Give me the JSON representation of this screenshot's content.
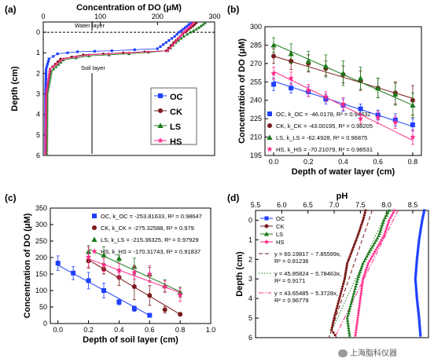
{
  "panel_labels": [
    "(a)",
    "(b)",
    "(c)",
    "(d)"
  ],
  "watermark": {
    "icon": "wechat-icon",
    "text": "上海脂科仪器"
  },
  "chart_data": [
    {
      "panel": "(a)",
      "type": "line",
      "xlabel": "Concentration of DO (μM)",
      "ylabel": "Depth (cm)",
      "xlim": [
        0,
        300
      ],
      "ylim": [
        -0.5,
        6
      ],
      "x_ticks": [
        "0",
        "100",
        "200",
        "300"
      ],
      "y_ticks": [
        "0",
        "1",
        "2",
        "3",
        "4",
        "5",
        "6"
      ],
      "y_inverted": true,
      "x_axis_position": "top",
      "annotations": [
        "Water layer",
        "Soil layer"
      ],
      "legend_position": "right-middle",
      "series": [
        {
          "name": "OC",
          "color": "#1f3fff",
          "marker": "square",
          "points": [
            [
              258,
              -0.45
            ],
            [
              252,
              -0.3
            ],
            [
              245,
              -0.15
            ],
            [
              238,
              0
            ],
            [
              230,
              0.2
            ],
            [
              215,
              0.5
            ],
            [
              200,
              0.8
            ],
            [
              120,
              0.9
            ],
            [
              60,
              0.95
            ],
            [
              25,
              1.05
            ],
            [
              10,
              1.3
            ],
            [
              5,
              1.8
            ],
            [
              4,
              3
            ],
            [
              4,
              6
            ]
          ]
        },
        {
          "name": "CK",
          "color": "#7a1a1a",
          "marker": "circle",
          "points": [
            [
              268,
              -0.45
            ],
            [
              262,
              -0.3
            ],
            [
              255,
              -0.15
            ],
            [
              248,
              0
            ],
            [
              240,
              0.2
            ],
            [
              228,
              0.5
            ],
            [
              215,
              0.9
            ],
            [
              140,
              1.0
            ],
            [
              70,
              1.1
            ],
            [
              30,
              1.3
            ],
            [
              12,
              1.8
            ],
            [
              6,
              3
            ],
            [
              5,
              6
            ]
          ]
        },
        {
          "name": "LS",
          "color": "#1a7a1a",
          "marker": "triangle",
          "points": [
            [
              283,
              -0.45
            ],
            [
              276,
              -0.3
            ],
            [
              268,
              -0.15
            ],
            [
              258,
              0
            ],
            [
              246,
              0.2
            ],
            [
              232,
              0.5
            ],
            [
              218,
              0.9
            ],
            [
              150,
              1.05
            ],
            [
              80,
              1.15
            ],
            [
              35,
              1.35
            ],
            [
              14,
              1.9
            ],
            [
              7,
              3
            ],
            [
              6,
              6
            ]
          ]
        },
        {
          "name": "HS",
          "color": "#ff2a8a",
          "marker": "star",
          "points": [
            [
              262,
              -0.45
            ],
            [
              258,
              -0.3
            ],
            [
              252,
              -0.15
            ],
            [
              246,
              0
            ],
            [
              240,
              0.2
            ],
            [
              230,
              0.5
            ],
            [
              218,
              0.9
            ],
            [
              150,
              1.0
            ],
            [
              80,
              1.1
            ],
            [
              35,
              1.3
            ],
            [
              12,
              1.8
            ],
            [
              5,
              3
            ],
            [
              4,
              6
            ]
          ]
        }
      ]
    },
    {
      "panel": "(b)",
      "type": "scatter",
      "xlabel": "Depth of water layer (cm)",
      "ylabel": "Concentration of DO (μM)",
      "xlim": [
        -0.05,
        0.85
      ],
      "ylim": [
        195,
        300
      ],
      "x_ticks": [
        "0.0",
        "0.2",
        "0.4",
        "0.6",
        "0.8"
      ],
      "y_ticks": [
        "195",
        "210",
        "225",
        "240",
        "255",
        "270",
        "285",
        "300"
      ],
      "legend_position": "bottom",
      "series": [
        {
          "name": "OC",
          "legend": "OC, k_OC = -46.0178, R² = 0.94832",
          "color": "#1f3fff",
          "marker": "square",
          "x": [
            0,
            0.1,
            0.2,
            0.3,
            0.4,
            0.5,
            0.6,
            0.7,
            0.8
          ],
          "y": [
            253,
            250,
            247,
            241,
            236,
            233,
            228,
            224,
            220
          ],
          "err": [
            5,
            4,
            4,
            4,
            5,
            4,
            4,
            5,
            5
          ],
          "fit": [
            0,
            255.5,
            0.8,
            218.7
          ]
        },
        {
          "name": "CK",
          "legend": "CK, k_CK = -43.00195, R² = 0.98205",
          "color": "#7a1a1a",
          "marker": "circle",
          "x": [
            0,
            0.1,
            0.2,
            0.3,
            0.4,
            0.5,
            0.6,
            0.7,
            0.8
          ],
          "y": [
            276,
            272,
            270,
            266,
            261,
            256,
            250,
            246,
            240
          ],
          "err": [
            6,
            7,
            7,
            6,
            7,
            8,
            8,
            9,
            12
          ],
          "fit": [
            0,
            276,
            0.8,
            241.6
          ]
        },
        {
          "name": "LS",
          "legend": "LS, k_LS = -62.4928, R² = 0.96875",
          "color": "#1a7a1a",
          "marker": "triangle",
          "x": [
            0,
            0.1,
            0.2,
            0.3,
            0.4,
            0.5,
            0.6,
            0.7,
            0.8
          ],
          "y": [
            285,
            278,
            272,
            268,
            262,
            258,
            250,
            245,
            236
          ],
          "err": [
            6,
            8,
            8,
            9,
            10,
            9,
            8,
            9,
            10
          ],
          "fit": [
            0,
            286,
            0.8,
            236
          ]
        },
        {
          "name": "HS",
          "legend": "HS, k_HS = -70.21079, R² = 0.98531",
          "color": "#ff2a8a",
          "marker": "star",
          "x": [
            0,
            0.1,
            0.2,
            0.3,
            0.4,
            0.5,
            0.6,
            0.7,
            0.8
          ],
          "y": [
            262,
            258,
            248,
            243,
            237,
            225,
            226,
            222,
            210
          ],
          "err": [
            5,
            5,
            5,
            4,
            5,
            4,
            5,
            5,
            6
          ],
          "fit": [
            0,
            263.5,
            0.8,
            207.3
          ]
        }
      ]
    },
    {
      "panel": "(c)",
      "type": "scatter",
      "xlabel": "Depth of soil layer (cm)",
      "ylabel": "Concentration of DO (μM)",
      "xlim": [
        -0.05,
        1.0
      ],
      "ylim": [
        0,
        350
      ],
      "x_ticks": [
        "0.0",
        "0.2",
        "0.4",
        "0.6",
        "0.8",
        "1.0"
      ],
      "y_ticks": [
        "0",
        "50",
        "100",
        "150",
        "200",
        "250",
        "300",
        "350"
      ],
      "legend_position": "top-right",
      "series": [
        {
          "name": "OC",
          "legend": "OC, k_OC = -253.81633, R² = 0.98647",
          "color": "#1f3fff",
          "marker": "square",
          "x": [
            0,
            0.1,
            0.2,
            0.3,
            0.4,
            0.5,
            0.6
          ],
          "y": [
            183,
            153,
            130,
            100,
            65,
            45,
            25
          ],
          "err": [
            22,
            20,
            25,
            22,
            8,
            8,
            5
          ],
          "fit": [
            0,
            177,
            0.6,
            24.7
          ]
        },
        {
          "name": "CK",
          "legend": "CK, k_CK = -275.32588, R² = 0.979",
          "color": "#7a1a1a",
          "marker": "circle",
          "x": [
            0.2,
            0.3,
            0.4,
            0.5,
            0.6,
            0.7,
            0.8
          ],
          "y": [
            190,
            165,
            140,
            112,
            85,
            42,
            28
          ],
          "err": [
            22,
            15,
            25,
            40,
            30,
            10,
            5
          ],
          "fit": [
            0.2,
            193,
            0.8,
            27.8
          ]
        },
        {
          "name": "LS",
          "legend": "LS, k_LS = -215.36325, R² = 0.97929",
          "color": "#1a7a1a",
          "marker": "triangle",
          "x": [
            0.2,
            0.3,
            0.4,
            0.5,
            0.6,
            0.7,
            0.8
          ],
          "y": [
            218,
            208,
            198,
            173,
            150,
            115,
            95
          ],
          "err": [
            18,
            25,
            10,
            25,
            20,
            18,
            15
          ],
          "fit": [
            0.2,
            226,
            0.8,
            96.8
          ]
        },
        {
          "name": "HS",
          "legend": "HS, k_HS = -170.31743, R² = 0.91837",
          "color": "#ff2a8a",
          "marker": "star",
          "x": [
            0.2,
            0.3,
            0.4,
            0.5,
            0.6,
            0.7,
            0.8
          ],
          "y": [
            202,
            178,
            160,
            155,
            150,
            112,
            87
          ],
          "err": [
            30,
            20,
            22,
            20,
            25,
            18,
            20
          ],
          "fit": [
            0.2,
            196,
            0.8,
            93.8
          ]
        }
      ]
    },
    {
      "panel": "(d)",
      "type": "line",
      "xlabel": "pH",
      "ylabel": "Depth (cm)",
      "xlim": [
        5.5,
        8.8
      ],
      "ylim": [
        -0.5,
        6
      ],
      "x_ticks": [
        "5.5",
        "6.0",
        "6.5",
        "7.0",
        "7.5",
        "8.0",
        "8.5"
      ],
      "y_ticks": [
        "0",
        "1",
        "2",
        "3",
        "4",
        "5",
        "6"
      ],
      "y_inverted": true,
      "x_axis_position": "top",
      "legend_position": "top-left",
      "series": [
        {
          "name": "OC",
          "color": "#1f3fff",
          "marker": "square",
          "points": [
            [
              8.72,
              -0.5
            ],
            [
              8.68,
              0
            ],
            [
              8.62,
              1
            ],
            [
              8.58,
              2
            ],
            [
              8.55,
              3
            ],
            [
              8.58,
              4
            ],
            [
              8.62,
              5
            ],
            [
              8.65,
              6
            ]
          ]
        },
        {
          "name": "CK",
          "color": "#7a1a1a",
          "marker": "circle",
          "points": [
            [
              7.6,
              -0.5
            ],
            [
              7.55,
              0
            ],
            [
              7.45,
              0.8
            ],
            [
              7.35,
              1.5
            ],
            [
              7.25,
              2.2
            ],
            [
              7.2,
              3
            ],
            [
              7.1,
              4
            ],
            [
              7.0,
              5
            ],
            [
              6.95,
              5.6
            ],
            [
              7.05,
              6
            ]
          ]
        },
        {
          "name": "LS",
          "color": "#1a7a1a",
          "marker": "triangle",
          "points": [
            [
              8.05,
              -0.5
            ],
            [
              7.95,
              0
            ],
            [
              7.85,
              0.8
            ],
            [
              7.7,
              1.5
            ],
            [
              7.55,
              2.2
            ],
            [
              7.45,
              3
            ],
            [
              7.35,
              4
            ],
            [
              7.25,
              5
            ],
            [
              7.3,
              6
            ]
          ]
        },
        {
          "name": "HS",
          "color": "#ff2a8a",
          "marker": "star",
          "points": [
            [
              8.15,
              -0.5
            ],
            [
              8.05,
              0
            ],
            [
              7.95,
              0.8
            ],
            [
              7.8,
              1.5
            ],
            [
              7.65,
              2.2
            ],
            [
              7.55,
              3
            ],
            [
              7.5,
              4
            ],
            [
              7.45,
              5
            ],
            [
              7.4,
              6
            ]
          ]
        }
      ],
      "fits": [
        {
          "label": "y = 60.19817 − 7.85599x, R² = 0.81236",
          "lines": [
            "y = 60.19817 − 7.85599x,",
            "R² = 0.81236"
          ],
          "color": "#7a1a1a",
          "style": "dash",
          "a": 60.19817,
          "b": -7.85599
        },
        {
          "label": "y = 45.85824 − 5.78463x, R² = 0.9171",
          "lines": [
            "y = 45.85824 − 5.78463x,",
            "R² = 0.9171"
          ],
          "color": "#1a7a1a",
          "style": "dot",
          "a": 45.85824,
          "b": -5.78463
        },
        {
          "label": "y = 43.65485 − 5.3728x, R² = 0.96779",
          "lines": [
            "y = 43.65485 − 5.3728x,",
            "R² = 0.96779"
          ],
          "color": "#ff2a8a",
          "style": "dashdot",
          "a": 43.65485,
          "b": -5.3728
        }
      ]
    }
  ]
}
